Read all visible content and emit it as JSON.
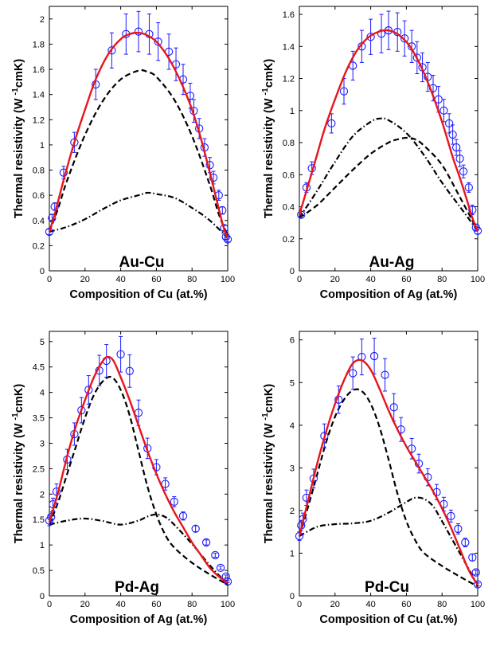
{
  "chart_data": [
    {
      "type": "line",
      "panel_label": "Au-Cu",
      "xlabel": "Composition of Cu (at.%)",
      "ylabel": {
        "main": "Thermal resistivity (W",
        "sup": "-1",
        "unit": "cmK)"
      },
      "xlim": [
        0,
        100
      ],
      "ylim": [
        0,
        2.1
      ],
      "xticks": [
        0,
        20,
        40,
        60,
        80,
        100
      ],
      "yticks": [
        0,
        0.2,
        0.4,
        0.6,
        0.8,
        1,
        1.2,
        1.4,
        1.6,
        1.8,
        2
      ],
      "yticklabels": [
        "0",
        "0.2",
        "0.4",
        "0.6",
        "0.8",
        "1",
        "1.2",
        "1.4",
        "1.6",
        "1.8",
        "2"
      ],
      "series": [
        {
          "name": "Fit (solid red)",
          "style": "solid",
          "color": "#e8151b",
          "x": [
            0,
            3,
            8,
            14,
            20,
            26,
            33,
            40,
            45,
            50,
            55,
            60,
            65,
            70,
            75,
            80,
            85,
            90,
            94,
            97,
            99,
            100
          ],
          "y": [
            0.31,
            0.45,
            0.72,
            1.02,
            1.28,
            1.52,
            1.72,
            1.84,
            1.88,
            1.89,
            1.87,
            1.82,
            1.73,
            1.61,
            1.46,
            1.28,
            1.05,
            0.78,
            0.55,
            0.38,
            0.29,
            0.26
          ]
        },
        {
          "name": "Dashed",
          "style": "dashed",
          "color": "#000000",
          "x": [
            0,
            5,
            10,
            20,
            30,
            40,
            50,
            55,
            60,
            70,
            80,
            90,
            95,
            100
          ],
          "y": [
            0.31,
            0.5,
            0.72,
            1.08,
            1.35,
            1.52,
            1.59,
            1.58,
            1.54,
            1.36,
            1.07,
            0.68,
            0.45,
            0.28
          ]
        },
        {
          "name": "Dash-dot",
          "style": "dashdot",
          "color": "#000000",
          "x": [
            0,
            10,
            20,
            30,
            40,
            50,
            55,
            60,
            70,
            80,
            90,
            100
          ],
          "y": [
            0.31,
            0.35,
            0.41,
            0.49,
            0.56,
            0.6,
            0.62,
            0.61,
            0.58,
            0.5,
            0.4,
            0.26
          ]
        },
        {
          "name": "Experiment (circles)",
          "style": "markers",
          "color": "#1a1aff",
          "x": [
            0,
            1.5,
            3,
            8,
            14,
            26,
            35,
            43,
            50,
            56,
            61,
            67,
            71,
            75,
            79,
            81,
            84,
            87,
            90,
            92,
            95,
            97,
            98,
            99,
            100
          ],
          "y": [
            0.31,
            0.42,
            0.51,
            0.78,
            1.02,
            1.48,
            1.75,
            1.88,
            1.9,
            1.88,
            1.82,
            1.74,
            1.64,
            1.52,
            1.39,
            1.27,
            1.13,
            0.98,
            0.84,
            0.74,
            0.6,
            0.48,
            0.34,
            0.27,
            0.25
          ],
          "err": [
            0.02,
            0.03,
            0.03,
            0.05,
            0.08,
            0.12,
            0.14,
            0.16,
            0.16,
            0.16,
            0.15,
            0.14,
            0.13,
            0.12,
            0.1,
            0.09,
            0.08,
            0.07,
            0.06,
            0.05,
            0.04,
            0.03,
            0.02,
            0.02,
            0.02
          ]
        }
      ]
    },
    {
      "type": "line",
      "panel_label": "Au-Ag",
      "xlabel": "Composition of Ag (at.%)",
      "ylabel": {
        "main": "Thermal resistivity (W",
        "sup": "-1",
        "unit": "cmK)"
      },
      "xlim": [
        0,
        100
      ],
      "ylim": [
        0,
        1.65
      ],
      "xticks": [
        0,
        20,
        40,
        60,
        80,
        100
      ],
      "yticks": [
        0,
        0.2,
        0.4,
        0.6,
        0.8,
        1,
        1.2,
        1.4,
        1.6
      ],
      "yticklabels": [
        "0",
        "0.2",
        "0.4",
        "0.6",
        "0.8",
        "1",
        "1.2",
        "1.4",
        "1.6"
      ],
      "series": [
        {
          "name": "Fit (solid red)",
          "style": "solid",
          "color": "#e8151b",
          "x": [
            0,
            4,
            8,
            14,
            20,
            26,
            32,
            38,
            44,
            50,
            56,
            62,
            68,
            74,
            80,
            86,
            90,
            94,
            97,
            100
          ],
          "y": [
            0.35,
            0.5,
            0.65,
            0.88,
            1.07,
            1.24,
            1.37,
            1.45,
            1.49,
            1.5,
            1.47,
            1.4,
            1.28,
            1.12,
            0.93,
            0.71,
            0.58,
            0.44,
            0.33,
            0.25
          ]
        },
        {
          "name": "Dashed",
          "style": "dashed",
          "color": "#000000",
          "x": [
            0,
            10,
            20,
            30,
            40,
            50,
            55,
            60,
            65,
            70,
            80,
            90,
            100
          ],
          "y": [
            0.33,
            0.41,
            0.52,
            0.63,
            0.73,
            0.8,
            0.82,
            0.83,
            0.82,
            0.78,
            0.66,
            0.46,
            0.25
          ]
        },
        {
          "name": "Dash-dot",
          "style": "dashdot",
          "color": "#000000",
          "x": [
            0,
            10,
            20,
            30,
            40,
            45,
            50,
            60,
            70,
            80,
            90,
            100
          ],
          "y": [
            0.33,
            0.5,
            0.68,
            0.84,
            0.93,
            0.95,
            0.94,
            0.86,
            0.72,
            0.55,
            0.4,
            0.25
          ]
        },
        {
          "name": "Experiment (circles)",
          "style": "markers",
          "color": "#1a1aff",
          "x": [
            1,
            4,
            7,
            18,
            25,
            30,
            35,
            40,
            46,
            50,
            55,
            59,
            63,
            66,
            69,
            72,
            75,
            78,
            81,
            84,
            86,
            88,
            90,
            92,
            95,
            97,
            99,
            100
          ],
          "y": [
            0.35,
            0.52,
            0.64,
            0.92,
            1.12,
            1.28,
            1.4,
            1.46,
            1.48,
            1.5,
            1.49,
            1.45,
            1.4,
            1.33,
            1.27,
            1.21,
            1.14,
            1.07,
            1.0,
            0.92,
            0.85,
            0.77,
            0.7,
            0.62,
            0.52,
            0.38,
            0.27,
            0.25
          ],
          "err": [
            0.02,
            0.03,
            0.04,
            0.06,
            0.08,
            0.09,
            0.1,
            0.11,
            0.12,
            0.12,
            0.12,
            0.11,
            0.1,
            0.1,
            0.09,
            0.09,
            0.08,
            0.08,
            0.07,
            0.06,
            0.06,
            0.05,
            0.05,
            0.04,
            0.03,
            0.03,
            0.02,
            0.02
          ]
        }
      ]
    },
    {
      "type": "line",
      "panel_label": "Pd-Ag",
      "xlabel": "Composition of Ag (at.%)",
      "ylabel": {
        "main": "Thermal resistivity (W",
        "sup": "-1",
        "unit": "cmK)"
      },
      "xlim": [
        0,
        100
      ],
      "ylim": [
        0,
        5.2
      ],
      "xticks": [
        0,
        20,
        40,
        60,
        80,
        100
      ],
      "yticks": [
        0,
        0.5,
        1,
        1.5,
        2,
        2.5,
        3,
        3.5,
        4,
        4.5,
        5
      ],
      "yticklabels": [
        "0",
        "0.5",
        "1",
        "1.5",
        "2",
        "2.5",
        "3",
        "3.5",
        "4",
        "4.5",
        "5"
      ],
      "series": [
        {
          "name": "Fit (solid red)",
          "style": "solid",
          "color": "#e8151b",
          "x": [
            0,
            5,
            10,
            15,
            20,
            25,
            30,
            33,
            36,
            40,
            45,
            50,
            55,
            60,
            65,
            70,
            75,
            80,
            85,
            90,
            95,
            100
          ],
          "y": [
            1.45,
            2.05,
            2.75,
            3.35,
            3.85,
            4.3,
            4.62,
            4.7,
            4.62,
            4.3,
            3.85,
            3.35,
            2.85,
            2.4,
            2.0,
            1.65,
            1.35,
            1.05,
            0.8,
            0.55,
            0.38,
            0.25
          ]
        },
        {
          "name": "Dashed",
          "style": "dashed",
          "color": "#000000",
          "x": [
            0,
            5,
            10,
            15,
            20,
            25,
            30,
            35,
            40,
            45,
            50,
            55,
            60,
            65,
            70,
            80,
            90,
            100
          ],
          "y": [
            1.4,
            1.85,
            2.4,
            2.95,
            3.5,
            3.95,
            4.22,
            4.3,
            4.05,
            3.55,
            2.85,
            2.15,
            1.6,
            1.2,
            0.95,
            0.65,
            0.42,
            0.22
          ]
        },
        {
          "name": "Dash-dot",
          "style": "dashdot",
          "color": "#000000",
          "x": [
            0,
            10,
            20,
            30,
            40,
            50,
            55,
            60,
            65,
            70,
            80,
            90,
            100
          ],
          "y": [
            1.4,
            1.48,
            1.52,
            1.47,
            1.4,
            1.48,
            1.56,
            1.6,
            1.55,
            1.4,
            1.02,
            0.6,
            0.22
          ]
        },
        {
          "name": "Experiment (circles)",
          "style": "markers",
          "color": "#1a1aff",
          "x": [
            0,
            1,
            2,
            4,
            10,
            14,
            18,
            22,
            28,
            32,
            40,
            45,
            50,
            55,
            60,
            65,
            70,
            75,
            82,
            88,
            93,
            96,
            99,
            100
          ],
          "y": [
            1.48,
            1.55,
            1.8,
            2.05,
            2.68,
            3.18,
            3.65,
            4.05,
            4.43,
            4.62,
            4.75,
            4.42,
            3.6,
            2.9,
            2.53,
            2.2,
            1.85,
            1.57,
            1.32,
            1.05,
            0.8,
            0.55,
            0.38,
            0.28
          ],
          "err": [
            0.1,
            0.1,
            0.12,
            0.15,
            0.2,
            0.22,
            0.25,
            0.28,
            0.3,
            0.32,
            0.35,
            0.32,
            0.25,
            0.2,
            0.15,
            0.12,
            0.1,
            0.08,
            0.06,
            0.05,
            0.04,
            0.03,
            0.03,
            0.02
          ]
        }
      ]
    },
    {
      "type": "line",
      "panel_label": "Pd-Cu",
      "xlabel": "Composition of Cu (at.%)",
      "ylabel": {
        "main": "Thermal resistivity (W",
        "sup": "-1",
        "unit": "cmK)"
      },
      "xlim": [
        0,
        100
      ],
      "ylim": [
        0,
        6.2
      ],
      "xticks": [
        0,
        20,
        40,
        60,
        80,
        100
      ],
      "yticks": [
        0,
        1,
        2,
        3,
        4,
        5,
        6
      ],
      "yticklabels": [
        "0",
        "1",
        "2",
        "3",
        "4",
        "5",
        "6"
      ],
      "series": [
        {
          "name": "Fit (solid red)",
          "style": "solid",
          "color": "#e8151b",
          "x": [
            0,
            5,
            10,
            15,
            20,
            25,
            30,
            35,
            40,
            45,
            50,
            55,
            60,
            65,
            70,
            75,
            80,
            85,
            90,
            95,
            100
          ],
          "y": [
            1.4,
            2.25,
            3.1,
            3.85,
            4.5,
            5.05,
            5.45,
            5.52,
            5.3,
            4.85,
            4.35,
            3.9,
            3.5,
            3.15,
            2.8,
            2.45,
            2.05,
            1.6,
            1.1,
            0.6,
            0.25
          ]
        },
        {
          "name": "Dashed",
          "style": "dashed",
          "color": "#000000",
          "x": [
            0,
            5,
            10,
            15,
            20,
            25,
            30,
            35,
            40,
            45,
            50,
            55,
            60,
            65,
            70,
            80,
            90,
            100
          ],
          "y": [
            1.4,
            2.1,
            2.85,
            3.6,
            4.2,
            4.6,
            4.82,
            4.8,
            4.5,
            3.95,
            3.2,
            2.4,
            1.75,
            1.3,
            1.0,
            0.7,
            0.45,
            0.22
          ]
        },
        {
          "name": "Dash-dot",
          "style": "dashdot",
          "color": "#000000",
          "x": [
            0,
            10,
            20,
            30,
            40,
            50,
            60,
            65,
            70,
            75,
            80,
            90,
            100
          ],
          "y": [
            1.4,
            1.62,
            1.68,
            1.7,
            1.76,
            1.95,
            2.2,
            2.3,
            2.27,
            2.1,
            1.75,
            1.0,
            0.25
          ]
        },
        {
          "name": "Experiment (circles)",
          "style": "markers",
          "color": "#1a1aff",
          "x": [
            0,
            1,
            2,
            4,
            8,
            14,
            22,
            30,
            35,
            42,
            48,
            53,
            57,
            63,
            67,
            72,
            77,
            81,
            85,
            89,
            93,
            97,
            99,
            100
          ],
          "y": [
            1.4,
            1.65,
            1.8,
            2.3,
            2.75,
            3.75,
            4.6,
            5.22,
            5.6,
            5.62,
            5.18,
            4.42,
            3.9,
            3.45,
            3.1,
            2.78,
            2.43,
            2.15,
            1.87,
            1.57,
            1.25,
            0.9,
            0.55,
            0.27
          ],
          "err": [
            0.1,
            0.12,
            0.14,
            0.18,
            0.22,
            0.28,
            0.32,
            0.38,
            0.42,
            0.42,
            0.38,
            0.32,
            0.28,
            0.24,
            0.22,
            0.2,
            0.18,
            0.16,
            0.14,
            0.12,
            0.1,
            0.08,
            0.05,
            0.03
          ]
        }
      ]
    }
  ]
}
